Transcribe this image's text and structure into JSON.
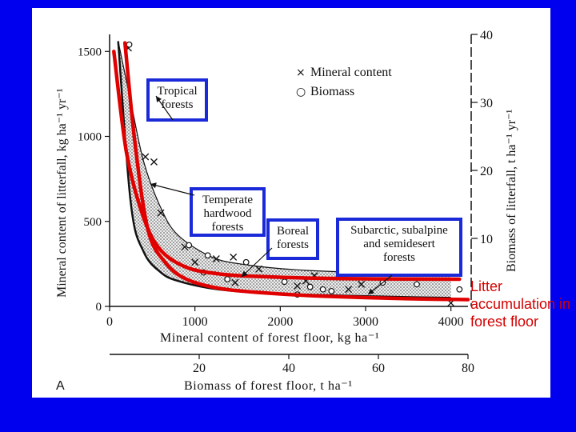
{
  "chart_data": {
    "type": "scatter",
    "title": "",
    "panel_label": "A",
    "xlabel": "Mineral content of forest floor, kg ha⁻¹",
    "xlabel_secondary": "Biomass of forest floor, t ha⁻¹",
    "ylabel": "Mineral content of litterfall, kg ha⁻¹ yr⁻¹",
    "ylabel_secondary": "Biomass of litterfall, t ha⁻¹ yr⁻¹",
    "xlim": [
      0,
      4200
    ],
    "ylim": [
      0,
      1600
    ],
    "xlim_secondary": [
      0,
      80
    ],
    "ylim_secondary": [
      0,
      40
    ],
    "x_ticks": [
      0,
      1000,
      2000,
      3000,
      4000
    ],
    "y_ticks": [
      0,
      500,
      1000,
      1500
    ],
    "x_ticks_secondary": [
      20,
      40,
      60,
      80
    ],
    "y_ticks_secondary": [
      10,
      20,
      30,
      40
    ],
    "legend": [
      {
        "symbol": "×",
        "label": "Mineral content"
      },
      {
        "symbol": "○",
        "label": "Biomass"
      }
    ],
    "legend_position": "top-right",
    "zones": [
      {
        "label": "Tropical forests"
      },
      {
        "label": "Temperate hardwood forests"
      },
      {
        "label": "Boreal forests"
      },
      {
        "label": "Subarctic, subalpine and semidesert forests"
      }
    ],
    "band_upper": {
      "x": [
        100,
        250,
        400,
        600,
        800,
        1200,
        1600,
        2200,
        3000,
        4000
      ],
      "y": [
        1560,
        1200,
        850,
        580,
        420,
        290,
        245,
        215,
        200,
        195
      ]
    },
    "band_lower": {
      "x": [
        100,
        250,
        400,
        600,
        800,
        1200,
        1600,
        2200,
        3000,
        4000
      ],
      "y": [
        1560,
        600,
        320,
        200,
        150,
        105,
        85,
        70,
        60,
        50
      ]
    },
    "red_curves": [
      {
        "name": "",
        "x": [
          50,
          200,
          400,
          600,
          900,
          1300,
          1800,
          2500,
          3200,
          4100
        ],
        "y": [
          1500,
          900,
          520,
          330,
          230,
          190,
          175,
          165,
          162,
          160
        ]
      },
      {
        "name": "",
        "x": [
          180,
          300,
          450,
          650,
          900,
          1300,
          1800,
          2500,
          3500,
          4200
        ],
        "y": [
          1550,
          950,
          450,
          260,
          160,
          105,
          80,
          60,
          45,
          40
        ]
      }
    ],
    "series": [
      {
        "name": "Mineral content",
        "marker": "x",
        "points": [
          [
            220,
            1520
          ],
          [
            420,
            880
          ],
          [
            520,
            850
          ],
          [
            600,
            550
          ],
          [
            880,
            350
          ],
          [
            1000,
            260
          ],
          [
            1250,
            280
          ],
          [
            1450,
            290
          ],
          [
            1470,
            140
          ],
          [
            1750,
            220
          ],
          [
            2200,
            120
          ],
          [
            2300,
            150
          ],
          [
            2400,
            180
          ],
          [
            2800,
            100
          ],
          [
            2950,
            130
          ],
          [
            4000,
            20
          ]
        ]
      },
      {
        "name": "Biomass",
        "marker": "o",
        "points": [
          [
            230,
            1540
          ],
          [
            930,
            360
          ],
          [
            1100,
            200
          ],
          [
            1150,
            300
          ],
          [
            1380,
            160
          ],
          [
            1600,
            260
          ],
          [
            2050,
            145
          ],
          [
            2200,
            70
          ],
          [
            2350,
            115
          ],
          [
            2500,
            100
          ],
          [
            2600,
            90
          ],
          [
            3200,
            140
          ],
          [
            3600,
            130
          ],
          [
            4100,
            100
          ]
        ]
      }
    ]
  },
  "side_note": "Litter accumulation in forest floor",
  "colors": {
    "background": "#0000ee",
    "panel": "#ffffff",
    "red": "#e00000",
    "box": "#1a2ad8",
    "ink": "#111111"
  }
}
